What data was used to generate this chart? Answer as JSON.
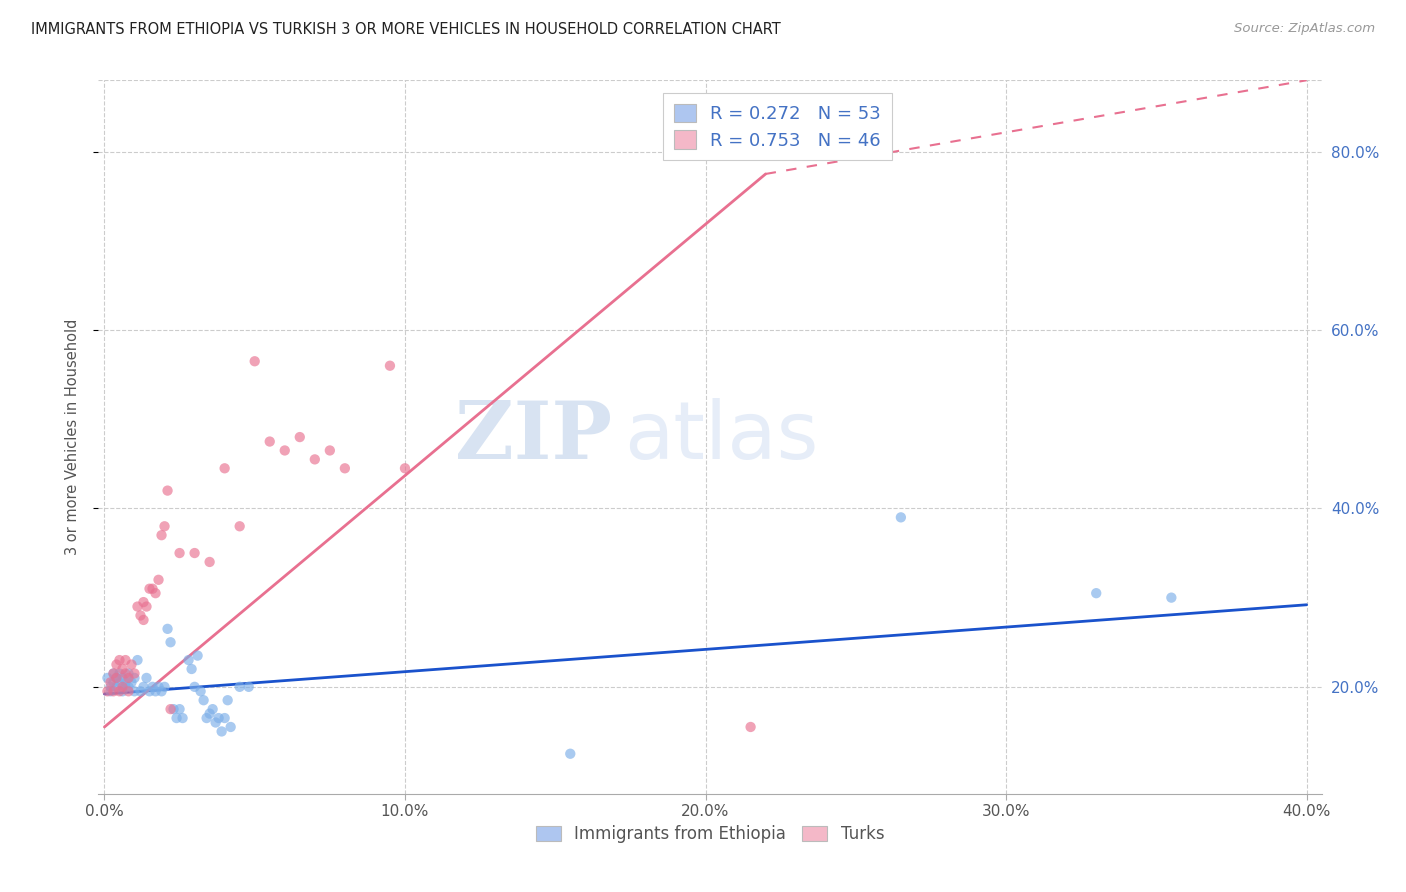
{
  "title": "IMMIGRANTS FROM ETHIOPIA VS TURKISH 3 OR MORE VEHICLES IN HOUSEHOLD CORRELATION CHART",
  "source": "Source: ZipAtlas.com",
  "ylabel": "3 or more Vehicles in Household",
  "xlim": [
    -0.002,
    0.405
  ],
  "ylim": [
    0.08,
    0.88
  ],
  "x_ticks": [
    0.0,
    0.1,
    0.2,
    0.3,
    0.4
  ],
  "y_ticks": [
    0.2,
    0.4,
    0.6,
    0.8
  ],
  "legend_items": [
    {
      "label": "R = 0.272   N = 53",
      "color": "#aec6f0"
    },
    {
      "label": "R = 0.753   N = 46",
      "color": "#f4b8c8"
    }
  ],
  "legend_label_bottom": [
    "Immigrants from Ethiopia",
    "Turks"
  ],
  "legend_colors_bottom": [
    "#aec6f0",
    "#f4b8c8"
  ],
  "watermark_zip": "ZIP",
  "watermark_atlas": "atlas",
  "background_color": "#ffffff",
  "grid_color": "#cccccc",
  "ethiopia_scatter": [
    [
      0.001,
      0.21
    ],
    [
      0.002,
      0.2
    ],
    [
      0.002,
      0.195
    ],
    [
      0.003,
      0.205
    ],
    [
      0.003,
      0.215
    ],
    [
      0.004,
      0.21
    ],
    [
      0.004,
      0.2
    ],
    [
      0.005,
      0.205
    ],
    [
      0.005,
      0.215
    ],
    [
      0.006,
      0.195
    ],
    [
      0.006,
      0.21
    ],
    [
      0.007,
      0.205
    ],
    [
      0.007,
      0.2
    ],
    [
      0.008,
      0.215
    ],
    [
      0.008,
      0.2
    ],
    [
      0.009,
      0.205
    ],
    [
      0.01,
      0.21
    ],
    [
      0.01,
      0.195
    ],
    [
      0.011,
      0.23
    ],
    [
      0.012,
      0.195
    ],
    [
      0.013,
      0.2
    ],
    [
      0.014,
      0.21
    ],
    [
      0.015,
      0.195
    ],
    [
      0.016,
      0.2
    ],
    [
      0.017,
      0.195
    ],
    [
      0.018,
      0.2
    ],
    [
      0.019,
      0.195
    ],
    [
      0.02,
      0.2
    ],
    [
      0.021,
      0.265
    ],
    [
      0.022,
      0.25
    ],
    [
      0.023,
      0.175
    ],
    [
      0.024,
      0.165
    ],
    [
      0.025,
      0.175
    ],
    [
      0.026,
      0.165
    ],
    [
      0.028,
      0.23
    ],
    [
      0.029,
      0.22
    ],
    [
      0.03,
      0.2
    ],
    [
      0.031,
      0.235
    ],
    [
      0.032,
      0.195
    ],
    [
      0.033,
      0.185
    ],
    [
      0.034,
      0.165
    ],
    [
      0.035,
      0.17
    ],
    [
      0.036,
      0.175
    ],
    [
      0.037,
      0.16
    ],
    [
      0.038,
      0.165
    ],
    [
      0.039,
      0.15
    ],
    [
      0.04,
      0.165
    ],
    [
      0.041,
      0.185
    ],
    [
      0.042,
      0.155
    ],
    [
      0.045,
      0.2
    ],
    [
      0.048,
      0.2
    ],
    [
      0.155,
      0.125
    ],
    [
      0.265,
      0.39
    ],
    [
      0.33,
      0.305
    ],
    [
      0.355,
      0.3
    ]
  ],
  "turkish_scatter": [
    [
      0.001,
      0.195
    ],
    [
      0.002,
      0.205
    ],
    [
      0.003,
      0.215
    ],
    [
      0.003,
      0.195
    ],
    [
      0.004,
      0.225
    ],
    [
      0.004,
      0.21
    ],
    [
      0.005,
      0.195
    ],
    [
      0.005,
      0.23
    ],
    [
      0.006,
      0.22
    ],
    [
      0.006,
      0.2
    ],
    [
      0.007,
      0.23
    ],
    [
      0.007,
      0.215
    ],
    [
      0.008,
      0.195
    ],
    [
      0.008,
      0.21
    ],
    [
      0.009,
      0.225
    ],
    [
      0.01,
      0.215
    ],
    [
      0.011,
      0.29
    ],
    [
      0.012,
      0.28
    ],
    [
      0.013,
      0.295
    ],
    [
      0.013,
      0.275
    ],
    [
      0.014,
      0.29
    ],
    [
      0.015,
      0.31
    ],
    [
      0.016,
      0.31
    ],
    [
      0.017,
      0.305
    ],
    [
      0.018,
      0.32
    ],
    [
      0.019,
      0.37
    ],
    [
      0.02,
      0.38
    ],
    [
      0.021,
      0.42
    ],
    [
      0.022,
      0.175
    ],
    [
      0.025,
      0.35
    ],
    [
      0.03,
      0.35
    ],
    [
      0.035,
      0.34
    ],
    [
      0.04,
      0.445
    ],
    [
      0.045,
      0.38
    ],
    [
      0.05,
      0.565
    ],
    [
      0.055,
      0.475
    ],
    [
      0.06,
      0.465
    ],
    [
      0.065,
      0.48
    ],
    [
      0.07,
      0.455
    ],
    [
      0.075,
      0.465
    ],
    [
      0.08,
      0.445
    ],
    [
      0.095,
      0.56
    ],
    [
      0.1,
      0.445
    ],
    [
      0.2,
      0.8
    ],
    [
      0.215,
      0.155
    ],
    [
      0.26,
      0.8
    ]
  ],
  "ethiopia_line_solid": [
    [
      0.0,
      0.192
    ],
    [
      0.4,
      0.292
    ]
  ],
  "turkish_line_solid": [
    [
      0.0,
      0.155
    ],
    [
      0.22,
      0.775
    ]
  ],
  "turkish_line_dashed": [
    [
      0.22,
      0.775
    ],
    [
      0.4,
      0.88
    ]
  ],
  "eth_color": "#7baee8",
  "turk_color": "#e87090",
  "eth_line_color": "#1a52cc",
  "turk_line_color": "#e87090",
  "scatter_size": 55,
  "scatter_alpha": 0.65
}
